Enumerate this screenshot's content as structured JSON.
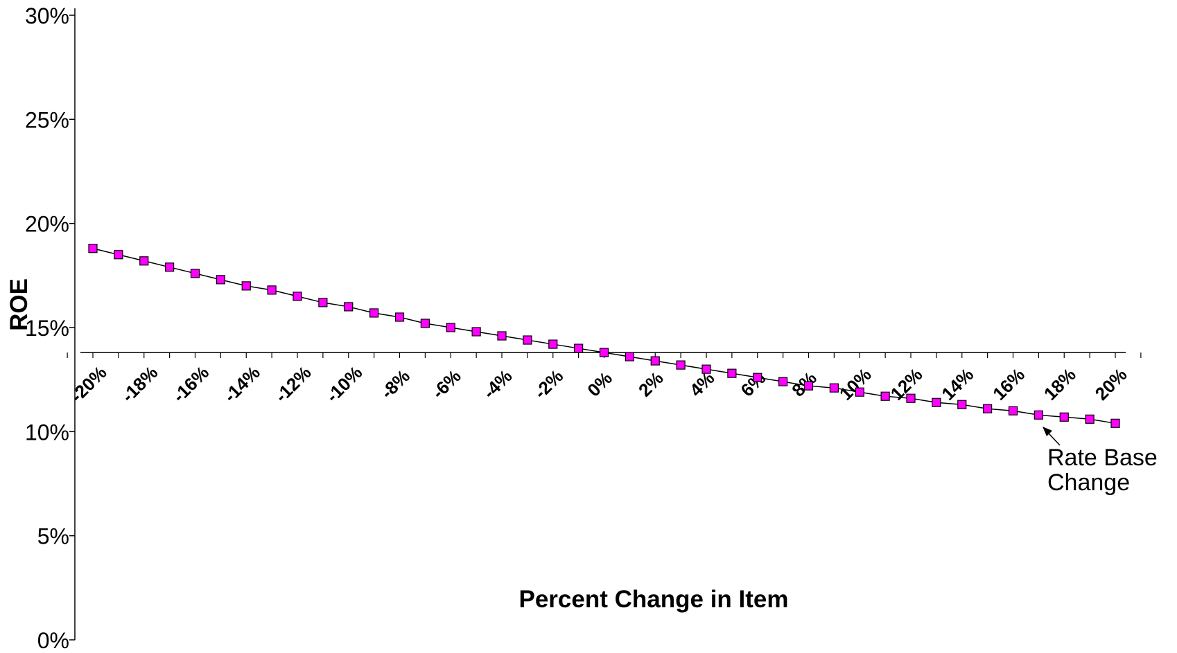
{
  "chart_data": {
    "type": "line",
    "title": "",
    "xlabel": "Percent Change in Item",
    "ylabel": "ROE",
    "ylim": [
      0,
      30
    ],
    "xlim": [
      -20.5,
      20.5
    ],
    "y_ticks": [
      "0%",
      "5%",
      "10%",
      "15%",
      "20%",
      "25%",
      "30%"
    ],
    "y_tick_values": [
      0,
      5,
      10,
      15,
      20,
      25,
      30
    ],
    "x_tick_labels": [
      "-20%",
      "-18%",
      "-16%",
      "-14%",
      "-12%",
      "-10%",
      "-8%",
      "-6%",
      "-4%",
      "-2%",
      "0%",
      "2%",
      "4%",
      "6%",
      "8%",
      "10%",
      "12%",
      "14%",
      "16%",
      "18%",
      "20%"
    ],
    "x_tick_values": [
      -20,
      -18,
      -16,
      -14,
      -12,
      -10,
      -8,
      -6,
      -4,
      -2,
      0,
      2,
      4,
      6,
      8,
      10,
      12,
      14,
      16,
      18,
      20
    ],
    "x_axis_crosses_at": 13.8,
    "grid": false,
    "legend": "none",
    "series": [
      {
        "marker": "square",
        "marker_color": "#ff00ff",
        "line_color": "#000000",
        "x": [
          -20,
          -19,
          -18,
          -17,
          -16,
          -15,
          -14,
          -13,
          -12,
          -11,
          -10,
          -9,
          -8,
          -7,
          -6,
          -5,
          -4,
          -3,
          -2,
          -1,
          0,
          1,
          2,
          3,
          4,
          5,
          6,
          7,
          8,
          9,
          10,
          11,
          12,
          13,
          14,
          15,
          16,
          17,
          18,
          19,
          20
        ],
        "values": [
          18.8,
          18.5,
          18.2,
          17.9,
          17.6,
          17.3,
          17.0,
          16.8,
          16.5,
          16.2,
          16.0,
          15.7,
          15.5,
          15.2,
          15.0,
          14.8,
          14.6,
          14.4,
          14.2,
          14.0,
          13.8,
          13.6,
          13.4,
          13.2,
          13.0,
          12.8,
          12.6,
          12.4,
          12.2,
          12.1,
          11.9,
          11.7,
          11.6,
          11.4,
          11.3,
          11.1,
          11.0,
          10.8,
          10.7,
          10.6,
          10.4
        ]
      }
    ],
    "annotations": [
      {
        "text_lines": [
          "Rate Base",
          "Change"
        ],
        "points_to_x": 18
      }
    ]
  }
}
